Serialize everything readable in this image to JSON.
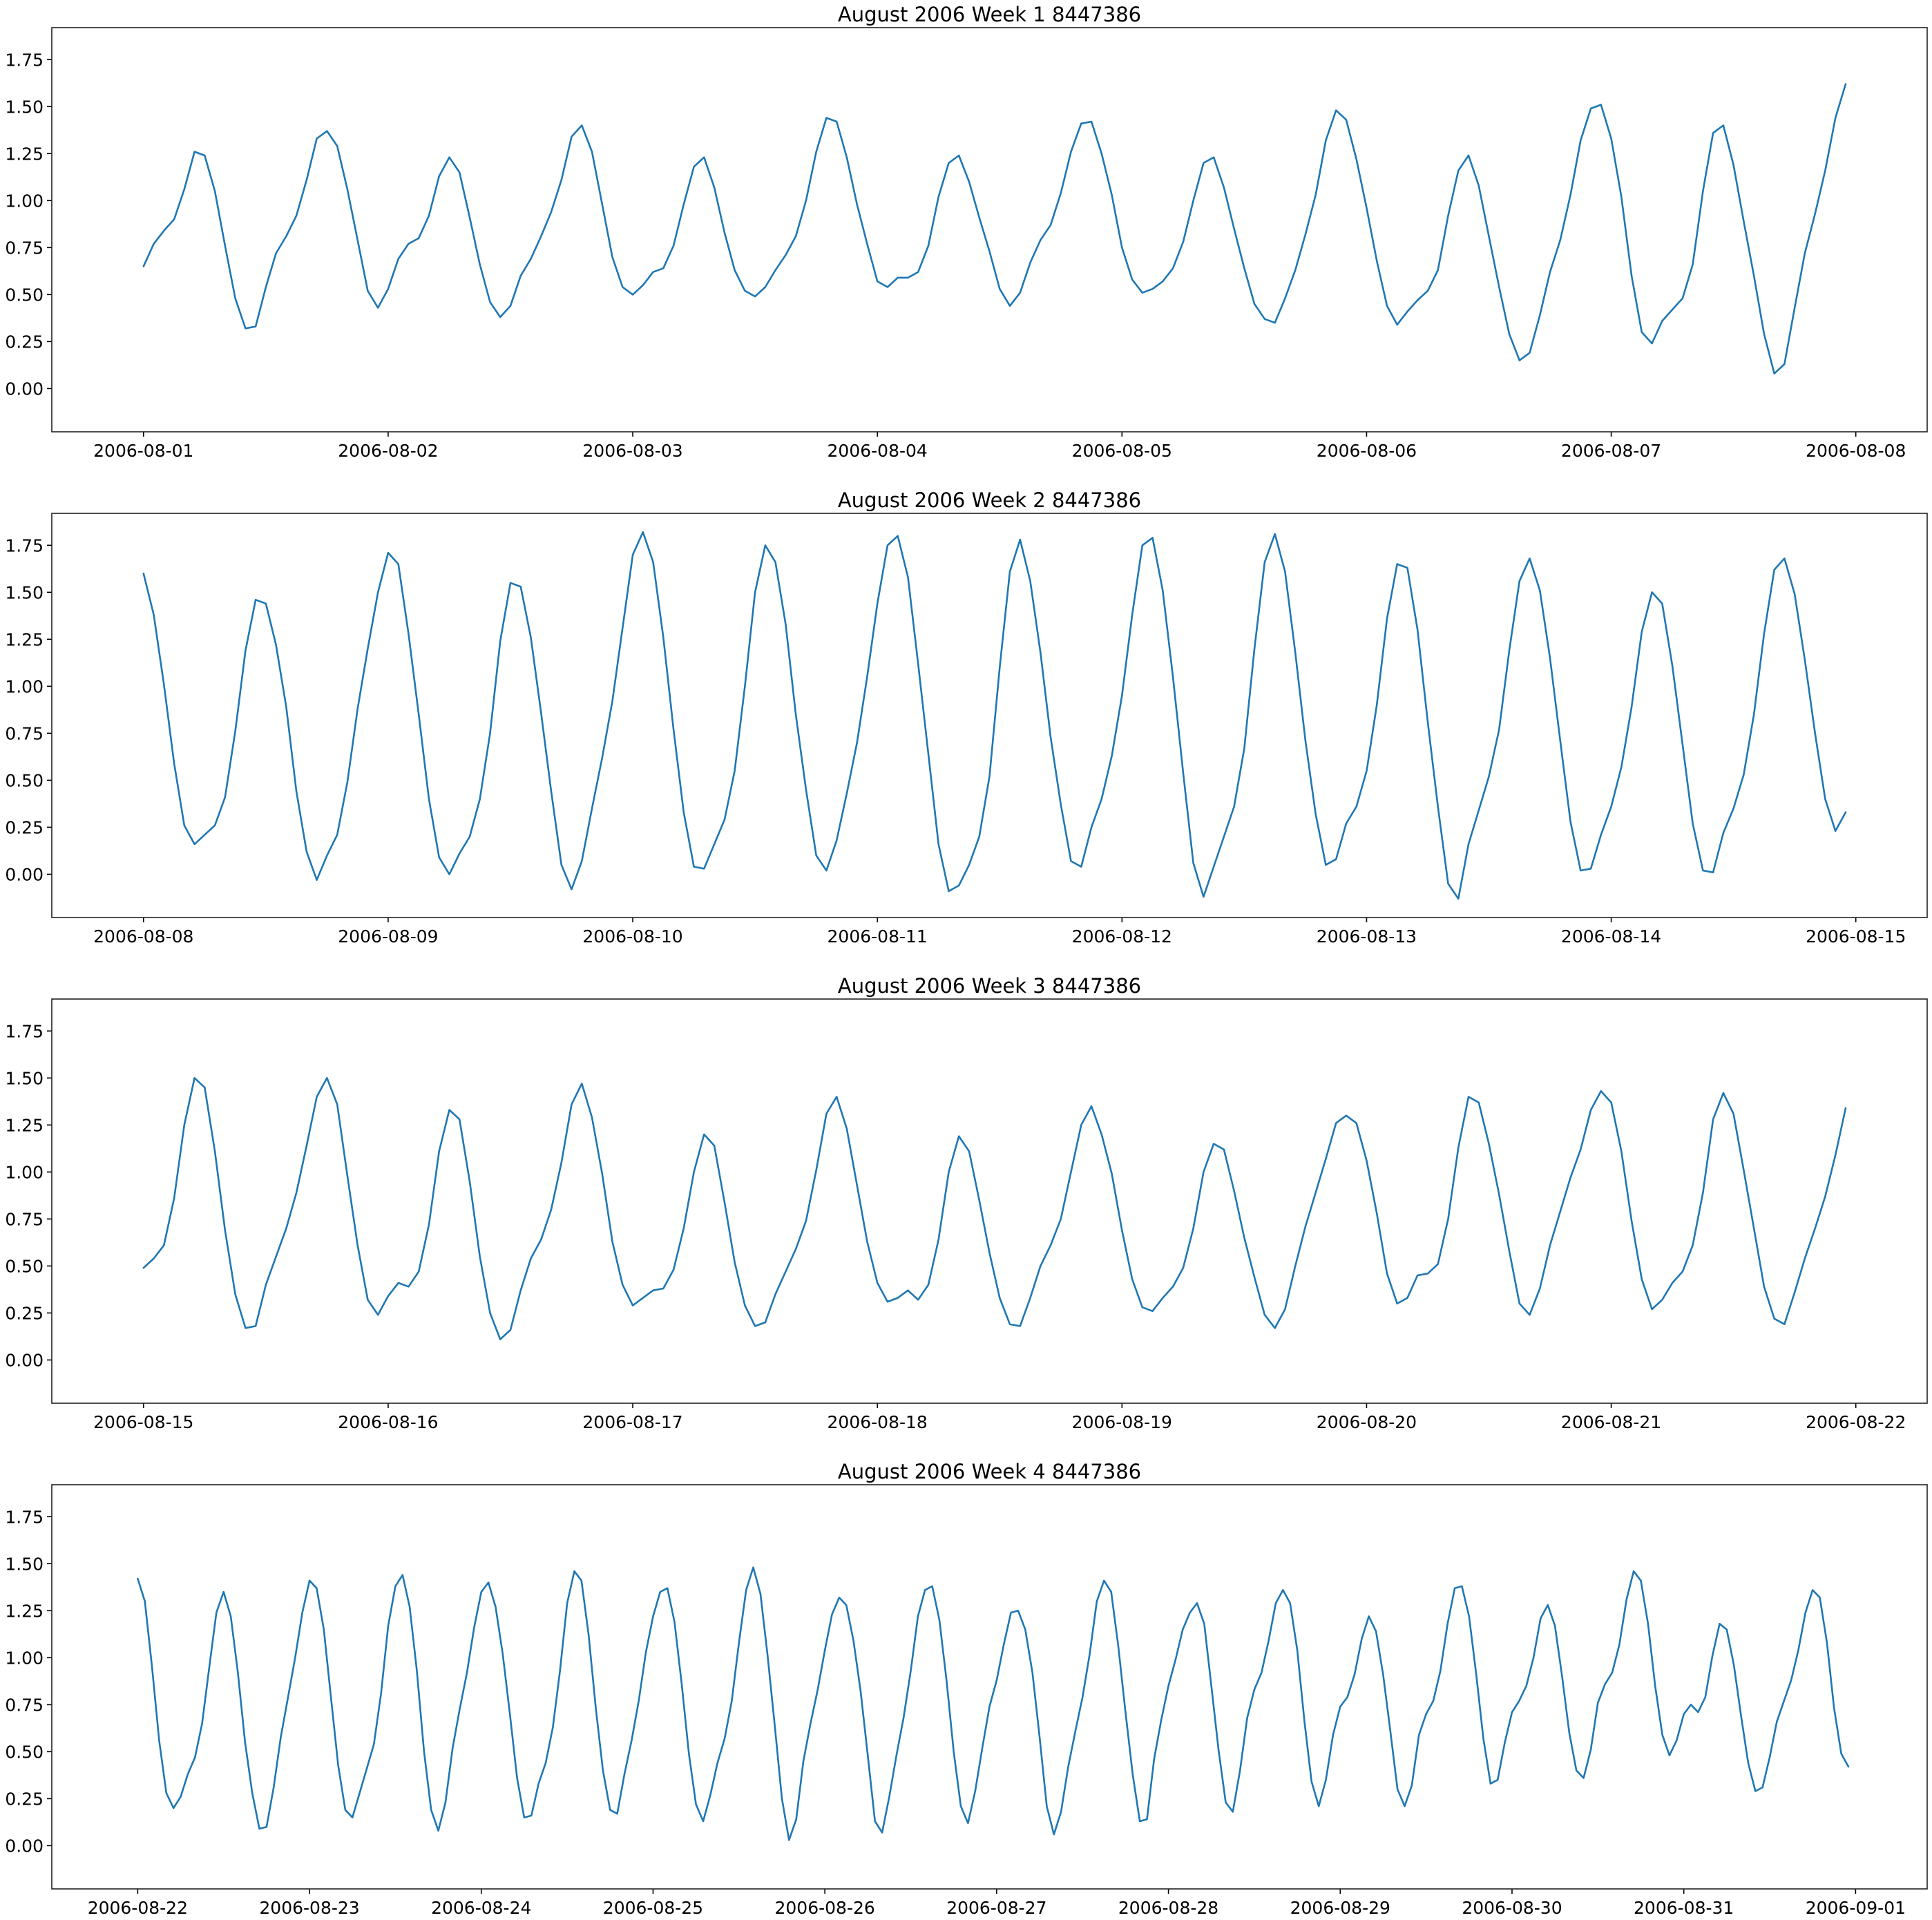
{
  "colors": {
    "line": "#1f77b4",
    "frame": "#222222",
    "background": "#ffffff"
  },
  "chart_data": [
    {
      "type": "line",
      "title": "August 2006 Week 1 8447386",
      "xlabel": "",
      "ylabel": "",
      "ylim": [
        -0.23,
        1.92
      ],
      "yticks": [
        "0.00",
        "0.25",
        "0.50",
        "0.75",
        "1.00",
        "1.25",
        "1.50",
        "1.75"
      ],
      "xlim": [
        "2006-07-31T15:00",
        "2006-08-08T07:00"
      ],
      "xtick_labels": [
        "2006-08-01",
        "2006-08-02",
        "2006-08-03",
        "2006-08-04",
        "2006-08-05",
        "2006-08-06",
        "2006-08-07",
        "2006-08-08"
      ],
      "grid": false,
      "legend": "none",
      "series": [
        {
          "x_start": "2006-08-01T00:00",
          "x_step_hours": 1,
          "values": [
            0.65,
            0.77,
            0.84,
            0.9,
            1.06,
            1.26,
            1.24,
            1.05,
            0.76,
            0.48,
            0.32,
            0.33,
            0.54,
            0.72,
            0.81,
            0.92,
            1.11,
            1.33,
            1.37,
            1.29,
            1.06,
            0.79,
            0.52,
            0.43,
            0.53,
            0.69,
            0.77,
            0.8,
            0.92,
            1.13,
            1.23,
            1.15,
            0.91,
            0.66,
            0.46,
            0.38,
            0.44,
            0.6,
            0.69,
            0.81,
            0.94,
            1.11,
            1.34,
            1.4,
            1.26,
            0.98,
            0.7,
            0.54,
            0.5,
            0.55,
            0.62,
            0.64,
            0.76,
            0.98,
            1.18,
            1.23,
            1.07,
            0.83,
            0.63,
            0.52,
            0.49,
            0.54,
            0.63,
            0.71,
            0.81,
            1.0,
            1.26,
            1.44,
            1.42,
            1.23,
            0.98,
            0.77,
            0.57,
            0.54,
            0.59,
            0.59,
            0.62,
            0.76,
            1.02,
            1.2,
            1.24,
            1.1,
            0.91,
            0.73,
            0.53,
            0.44,
            0.51,
            0.67,
            0.79,
            0.87,
            1.04,
            1.26,
            1.41,
            1.42,
            1.25,
            1.03,
            0.75,
            0.58,
            0.51,
            0.53,
            0.57,
            0.64,
            0.78,
            1.0,
            1.2,
            1.23,
            1.07,
            0.85,
            0.64,
            0.45,
            0.37,
            0.35,
            0.48,
            0.63,
            0.82,
            1.03,
            1.32,
            1.48,
            1.43,
            1.22,
            0.96,
            0.68,
            0.44,
            0.34,
            0.41,
            0.47,
            0.52,
            0.63,
            0.92,
            1.16,
            1.24,
            1.08,
            0.81,
            0.54,
            0.29,
            0.15,
            0.19,
            0.39,
            0.62,
            0.79,
            1.03,
            1.32,
            1.49,
            1.51,
            1.33,
            1.02,
            0.6,
            0.3,
            0.24,
            0.36,
            0.42,
            0.48,
            0.66,
            1.05,
            1.36,
            1.4,
            1.19,
            0.89,
            0.6,
            0.29,
            0.08,
            0.13,
            0.43,
            0.72,
            0.93,
            1.16,
            1.44,
            1.62
          ]
        }
      ]
    },
    {
      "type": "line",
      "title": "August 2006 Week 2 8447386",
      "xlabel": "",
      "ylabel": "",
      "ylim": [
        -0.23,
        1.92
      ],
      "yticks": [
        "0.00",
        "0.25",
        "0.50",
        "0.75",
        "1.00",
        "1.25",
        "1.50",
        "1.75"
      ],
      "xlim": [
        "2006-08-07T15:00",
        "2006-08-15T07:00"
      ],
      "xtick_labels": [
        "2006-08-08",
        "2006-08-09",
        "2006-08-10",
        "2006-08-11",
        "2006-08-12",
        "2006-08-13",
        "2006-08-14",
        "2006-08-15"
      ],
      "grid": false,
      "legend": "none",
      "series": [
        {
          "x_start": "2006-08-08T00:00",
          "x_step_hours": 1,
          "values": [
            1.6,
            1.38,
            1.01,
            0.59,
            0.26,
            0.16,
            0.21,
            0.26,
            0.41,
            0.76,
            1.19,
            1.46,
            1.44,
            1.22,
            0.89,
            0.44,
            0.12,
            -0.03,
            0.1,
            0.21,
            0.49,
            0.88,
            1.2,
            1.5,
            1.71,
            1.65,
            1.28,
            0.85,
            0.4,
            0.09,
            0.0,
            0.11,
            0.2,
            0.4,
            0.75,
            1.24,
            1.55,
            1.53,
            1.26,
            0.86,
            0.44,
            0.05,
            -0.08,
            0.07,
            0.35,
            0.62,
            0.92,
            1.31,
            1.7,
            1.82,
            1.66,
            1.26,
            0.77,
            0.33,
            0.04,
            0.03,
            0.16,
            0.29,
            0.55,
            1.0,
            1.5,
            1.75,
            1.66,
            1.33,
            0.85,
            0.45,
            0.1,
            0.02,
            0.18,
            0.43,
            0.7,
            1.05,
            1.44,
            1.75,
            1.8,
            1.58,
            1.12,
            0.64,
            0.16,
            -0.09,
            -0.06,
            0.05,
            0.2,
            0.52,
            1.1,
            1.61,
            1.78,
            1.56,
            1.18,
            0.73,
            0.37,
            0.07,
            0.04,
            0.25,
            0.4,
            0.63,
            0.95,
            1.38,
            1.75,
            1.79,
            1.51,
            1.05,
            0.54,
            0.06,
            -0.12,
            0.04,
            0.2,
            0.36,
            0.67,
            1.2,
            1.66,
            1.81,
            1.61,
            1.18,
            0.71,
            0.32,
            0.05,
            0.08,
            0.27,
            0.36,
            0.55,
            0.9,
            1.36,
            1.65,
            1.63,
            1.3,
            0.81,
            0.36,
            -0.05,
            -0.13,
            0.16,
            0.34,
            0.52,
            0.77,
            1.19,
            1.56,
            1.68,
            1.51,
            1.15,
            0.71,
            0.28,
            0.02,
            0.03,
            0.21,
            0.36,
            0.57,
            0.89,
            1.29,
            1.5,
            1.44,
            1.11,
            0.69,
            0.27,
            0.02,
            0.01,
            0.22,
            0.35,
            0.53,
            0.85,
            1.28,
            1.62,
            1.68,
            1.49,
            1.14,
            0.75,
            0.4,
            0.23,
            0.33
          ]
        }
      ]
    },
    {
      "type": "line",
      "title": "August 2006 Week 3 8447386",
      "xlabel": "",
      "ylabel": "",
      "ylim": [
        -0.23,
        1.92
      ],
      "yticks": [
        "0.00",
        "0.25",
        "0.50",
        "0.75",
        "1.00",
        "1.25",
        "1.50",
        "1.75"
      ],
      "xlim": [
        "2006-08-14T15:00",
        "2006-08-22T07:00"
      ],
      "xtick_labels": [
        "2006-08-15",
        "2006-08-16",
        "2006-08-17",
        "2006-08-18",
        "2006-08-19",
        "2006-08-20",
        "2006-08-21",
        "2006-08-22"
      ],
      "grid": false,
      "legend": "none",
      "series": [
        {
          "x_start": "2006-08-15T00:00",
          "x_step_hours": 1,
          "values": [
            0.49,
            0.54,
            0.61,
            0.86,
            1.25,
            1.5,
            1.45,
            1.11,
            0.69,
            0.35,
            0.17,
            0.18,
            0.4,
            0.55,
            0.7,
            0.89,
            1.14,
            1.4,
            1.5,
            1.36,
            0.98,
            0.61,
            0.32,
            0.24,
            0.34,
            0.41,
            0.39,
            0.47,
            0.72,
            1.11,
            1.33,
            1.28,
            0.95,
            0.55,
            0.25,
            0.11,
            0.16,
            0.37,
            0.54,
            0.64,
            0.8,
            1.05,
            1.36,
            1.47,
            1.29,
            0.99,
            0.63,
            0.4,
            0.29,
            0.33,
            0.37,
            0.38,
            0.48,
            0.7,
            1.0,
            1.2,
            1.14,
            0.84,
            0.52,
            0.29,
            0.18,
            0.2,
            0.35,
            0.47,
            0.59,
            0.74,
            1.01,
            1.31,
            1.4,
            1.23,
            0.93,
            0.63,
            0.41,
            0.31,
            0.33,
            0.37,
            0.32,
            0.4,
            0.64,
            1.0,
            1.19,
            1.11,
            0.85,
            0.57,
            0.33,
            0.19,
            0.18,
            0.33,
            0.5,
            0.61,
            0.75,
            1.0,
            1.25,
            1.35,
            1.2,
            0.99,
            0.69,
            0.43,
            0.28,
            0.26,
            0.33,
            0.39,
            0.49,
            0.7,
            1.0,
            1.15,
            1.12,
            0.9,
            0.65,
            0.44,
            0.24,
            0.17,
            0.27,
            0.5,
            0.71,
            0.89,
            1.07,
            1.26,
            1.3,
            1.26,
            1.06,
            0.78,
            0.46,
            0.3,
            0.33,
            0.45,
            0.46,
            0.51,
            0.75,
            1.13,
            1.4,
            1.37,
            1.15,
            0.88,
            0.58,
            0.3,
            0.24,
            0.38,
            0.61,
            0.79,
            0.97,
            1.12,
            1.33,
            1.43,
            1.37,
            1.11,
            0.74,
            0.43,
            0.27,
            0.32,
            0.41,
            0.47,
            0.61,
            0.89,
            1.28,
            1.42,
            1.31,
            1.01,
            0.7,
            0.39,
            0.22,
            0.19,
            0.36,
            0.54,
            0.7,
            0.87,
            1.09,
            1.34
          ]
        }
      ]
    },
    {
      "type": "line",
      "title": "August 2006 Week 4 8447386",
      "xlabel": "",
      "ylabel": "",
      "ylim": [
        -0.23,
        1.92
      ],
      "yticks": [
        "0.00",
        "0.25",
        "0.50",
        "0.75",
        "1.00",
        "1.25",
        "1.50",
        "1.75"
      ],
      "xlim": [
        "2006-08-21T12:00",
        "2006-09-01T10:00"
      ],
      "xtick_labels": [
        "2006-08-22",
        "2006-08-23",
        "2006-08-24",
        "2006-08-25",
        "2006-08-26",
        "2006-08-27",
        "2006-08-28",
        "2006-08-29",
        "2006-08-30",
        "2006-08-31",
        "2006-09-01"
      ],
      "grid": false,
      "legend": "none",
      "series": [
        {
          "x_start": "2006-08-22T00:00",
          "x_step_hours": 1,
          "values": [
            1.42,
            1.3,
            0.95,
            0.56,
            0.28,
            0.2,
            0.26,
            0.38,
            0.47,
            0.65,
            0.95,
            1.24,
            1.35,
            1.22,
            0.92,
            0.55,
            0.28,
            0.09,
            0.1,
            0.31,
            0.58,
            0.79,
            1.0,
            1.24,
            1.41,
            1.37,
            1.15,
            0.79,
            0.43,
            0.19,
            0.15,
            0.28,
            0.41,
            0.54,
            0.81,
            1.17,
            1.38,
            1.44,
            1.27,
            0.93,
            0.5,
            0.19,
            0.08,
            0.23,
            0.52,
            0.73,
            0.92,
            1.16,
            1.35,
            1.4,
            1.27,
            1.02,
            0.7,
            0.36,
            0.15,
            0.16,
            0.33,
            0.44,
            0.63,
            0.93,
            1.29,
            1.46,
            1.41,
            1.12,
            0.73,
            0.4,
            0.19,
            0.17,
            0.38,
            0.56,
            0.77,
            1.03,
            1.22,
            1.35,
            1.37,
            1.19,
            0.86,
            0.49,
            0.22,
            0.13,
            0.27,
            0.44,
            0.57,
            0.77,
            1.08,
            1.36,
            1.48,
            1.34,
            1.01,
            0.64,
            0.25,
            0.03,
            0.14,
            0.45,
            0.65,
            0.83,
            1.04,
            1.23,
            1.32,
            1.28,
            1.09,
            0.82,
            0.48,
            0.13,
            0.07,
            0.26,
            0.48,
            0.68,
            0.93,
            1.22,
            1.36,
            1.38,
            1.2,
            0.88,
            0.5,
            0.21,
            0.12,
            0.29,
            0.52,
            0.74,
            0.88,
            1.07,
            1.24,
            1.25,
            1.15,
            0.92,
            0.58,
            0.21,
            0.06,
            0.18,
            0.42,
            0.61,
            0.79,
            1.02,
            1.3,
            1.41,
            1.35,
            1.06,
            0.71,
            0.38,
            0.13,
            0.14,
            0.46,
            0.67,
            0.85,
            0.99,
            1.15,
            1.24,
            1.29,
            1.18,
            0.85,
            0.51,
            0.23,
            0.18,
            0.4,
            0.68,
            0.83,
            0.92,
            1.09,
            1.29,
            1.36,
            1.29,
            1.04,
            0.66,
            0.34,
            0.21,
            0.35,
            0.59,
            0.74,
            0.79,
            0.91,
            1.1,
            1.22,
            1.14,
            0.91,
            0.61,
            0.3,
            0.21,
            0.32,
            0.59,
            0.7,
            0.77,
            0.93,
            1.18,
            1.37,
            1.38,
            1.22,
            0.91,
            0.57,
            0.33,
            0.35,
            0.55,
            0.71,
            0.77,
            0.85,
            1.0,
            1.21,
            1.28,
            1.17,
            0.9,
            0.6,
            0.4,
            0.36,
            0.51,
            0.76,
            0.86,
            0.92,
            1.07,
            1.31,
            1.46,
            1.41,
            1.18,
            0.85,
            0.59,
            0.48,
            0.56,
            0.7,
            0.75,
            0.71,
            0.79,
            1.01,
            1.18,
            1.15,
            0.96,
            0.69,
            0.44,
            0.29,
            0.31,
            0.47,
            0.66,
            0.77,
            0.88,
            1.04,
            1.24,
            1.36,
            1.32,
            1.08,
            0.73,
            0.49,
            0.42
          ]
        }
      ]
    }
  ]
}
